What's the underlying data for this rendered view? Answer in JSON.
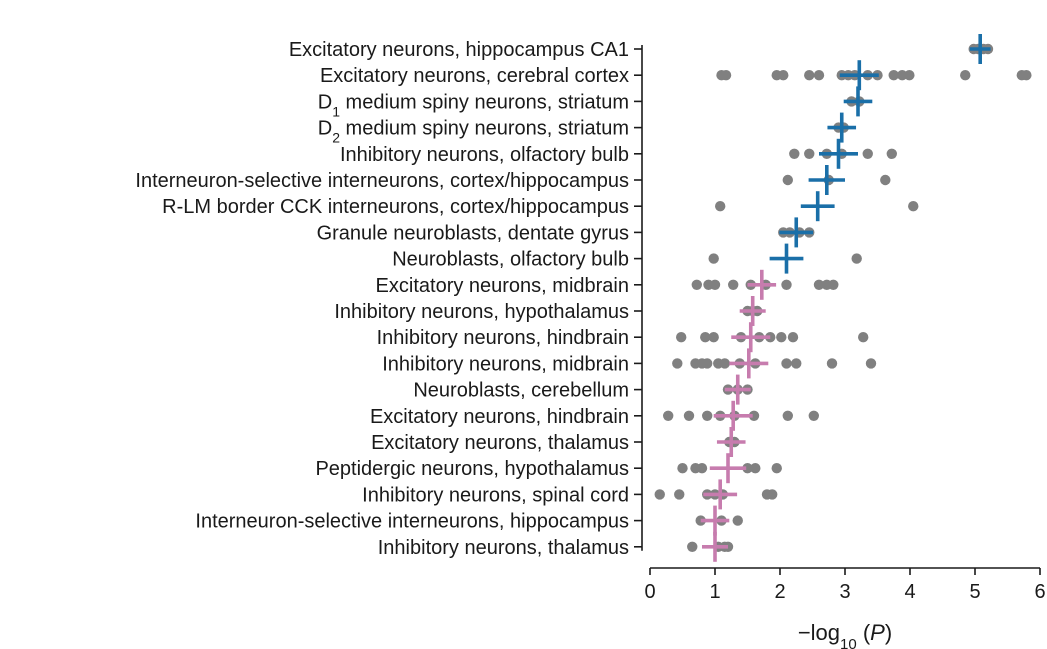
{
  "chart_data": {
    "type": "scatter",
    "title": "",
    "xlabel_parts": [
      "−log",
      "10",
      " (",
      "P",
      ")"
    ],
    "ylabel": "",
    "xlim": [
      0,
      6
    ],
    "xticks": [
      0,
      1,
      2,
      3,
      4,
      5,
      6
    ],
    "grid": false,
    "legend": "none",
    "colors": {
      "points": "#808080",
      "group_blue": "#1a6fa8",
      "group_pink": "#c77cae",
      "axis": "#1a1a1a"
    },
    "categories": [
      {
        "label": "Excitatory neurons, hippocampus CA1",
        "group": "blue",
        "mean": 5.08,
        "ci_half": 0.16,
        "points": [
          4.98,
          5.05,
          5.13,
          5.2
        ]
      },
      {
        "label": "Excitatory neurons, cerebral cortex",
        "group": "blue",
        "mean": 3.22,
        "ci_half": 0.3,
        "points": [
          1.1,
          1.17,
          1.95,
          2.05,
          2.45,
          2.6,
          2.95,
          3.05,
          3.15,
          3.35,
          3.5,
          3.75,
          3.88,
          3.99,
          4.85,
          5.72,
          5.79
        ]
      },
      {
        "label": "D1 medium spiny neurons, striatum",
        "sub": {
          "base": "D",
          "sub": "1",
          "rest": " medium spiny neurons, striatum"
        },
        "group": "blue",
        "mean": 3.2,
        "ci_half": 0.22,
        "points": [
          3.1,
          3.22
        ]
      },
      {
        "label": "D2 medium spiny neurons, striatum",
        "sub": {
          "base": "D",
          "sub": "2",
          "rest": " medium spiny neurons, striatum"
        },
        "group": "blue",
        "mean": 2.95,
        "ci_half": 0.22,
        "points": [
          2.9,
          2.98
        ]
      },
      {
        "label": "Inhibitory neurons, olfactory bulb",
        "group": "blue",
        "mean": 2.9,
        "ci_half": 0.3,
        "points": [
          2.22,
          2.45,
          2.72,
          2.95,
          3.35,
          3.72
        ]
      },
      {
        "label": "Interneuron-selective interneurons, cortex/hippocampus",
        "group": "blue",
        "mean": 2.72,
        "ci_half": 0.28,
        "points": [
          2.12,
          2.75,
          3.62
        ]
      },
      {
        "label": "R-LM border CCK interneurons, cortex/hippocampus",
        "group": "blue",
        "mean": 2.58,
        "ci_half": 0.26,
        "points": [
          1.08,
          4.05
        ]
      },
      {
        "label": "Granule neuroblasts, dentate gyrus",
        "group": "blue",
        "mean": 2.25,
        "ci_half": 0.26,
        "points": [
          2.05,
          2.15,
          2.3,
          2.45
        ]
      },
      {
        "label": "Neuroblasts, olfactory bulb",
        "group": "blue",
        "mean": 2.1,
        "ci_half": 0.26,
        "points": [
          0.98,
          3.18
        ]
      },
      {
        "label": "Excitatory neurons, midbrain",
        "group": "pink",
        "mean": 1.72,
        "ci_half": 0.22,
        "points": [
          0.72,
          0.9,
          1.0,
          1.28,
          1.55,
          1.78,
          2.1,
          2.6,
          2.72,
          2.82
        ]
      },
      {
        "label": "Inhibitory neurons, hypothalamus",
        "group": "pink",
        "mean": 1.58,
        "ci_half": 0.2,
        "points": [
          1.5,
          1.58,
          1.65
        ]
      },
      {
        "label": "Inhibitory neurons, hindbrain",
        "group": "pink",
        "mean": 1.55,
        "ci_half": 0.3,
        "points": [
          0.48,
          0.85,
          0.98,
          1.4,
          1.68,
          1.85,
          2.02,
          2.2,
          3.28
        ]
      },
      {
        "label": "Inhibitory neurons, midbrain",
        "group": "pink",
        "mean": 1.52,
        "ci_half": 0.3,
        "points": [
          0.42,
          0.7,
          0.8,
          0.88,
          1.05,
          1.15,
          1.38,
          1.62,
          2.1,
          2.25,
          2.8,
          3.4
        ]
      },
      {
        "label": "Neuroblasts, cerebellum",
        "group": "pink",
        "mean": 1.35,
        "ci_half": 0.2,
        "points": [
          1.2,
          1.35,
          1.5
        ]
      },
      {
        "label": "Excitatory neurons, hindbrain",
        "group": "pink",
        "mean": 1.28,
        "ci_half": 0.3,
        "points": [
          0.28,
          0.6,
          0.88,
          1.08,
          1.3,
          1.6,
          2.12,
          2.52
        ]
      },
      {
        "label": "Excitatory neurons, thalamus",
        "group": "pink",
        "mean": 1.25,
        "ci_half": 0.22,
        "points": [
          1.22,
          1.3
        ]
      },
      {
        "label": "Peptidergic neurons, hypothalamus",
        "group": "pink",
        "mean": 1.2,
        "ci_half": 0.28,
        "points": [
          0.5,
          0.7,
          0.8,
          1.5,
          1.62,
          1.95
        ]
      },
      {
        "label": "Inhibitory neurons, spinal cord",
        "group": "pink",
        "mean": 1.08,
        "ci_half": 0.26,
        "points": [
          0.15,
          0.45,
          0.88,
          1.0,
          1.12,
          1.8,
          1.88
        ]
      },
      {
        "label": "Interneuron-selective interneurons, hippocampus",
        "group": "pink",
        "mean": 1.0,
        "ci_half": 0.22,
        "points": [
          0.78,
          1.1,
          1.35
        ]
      },
      {
        "label": "Inhibitory neurons, thalamus",
        "group": "pink",
        "mean": 1.0,
        "ci_half": 0.2,
        "points": [
          0.65,
          1.05,
          1.15,
          1.2
        ]
      }
    ]
  }
}
